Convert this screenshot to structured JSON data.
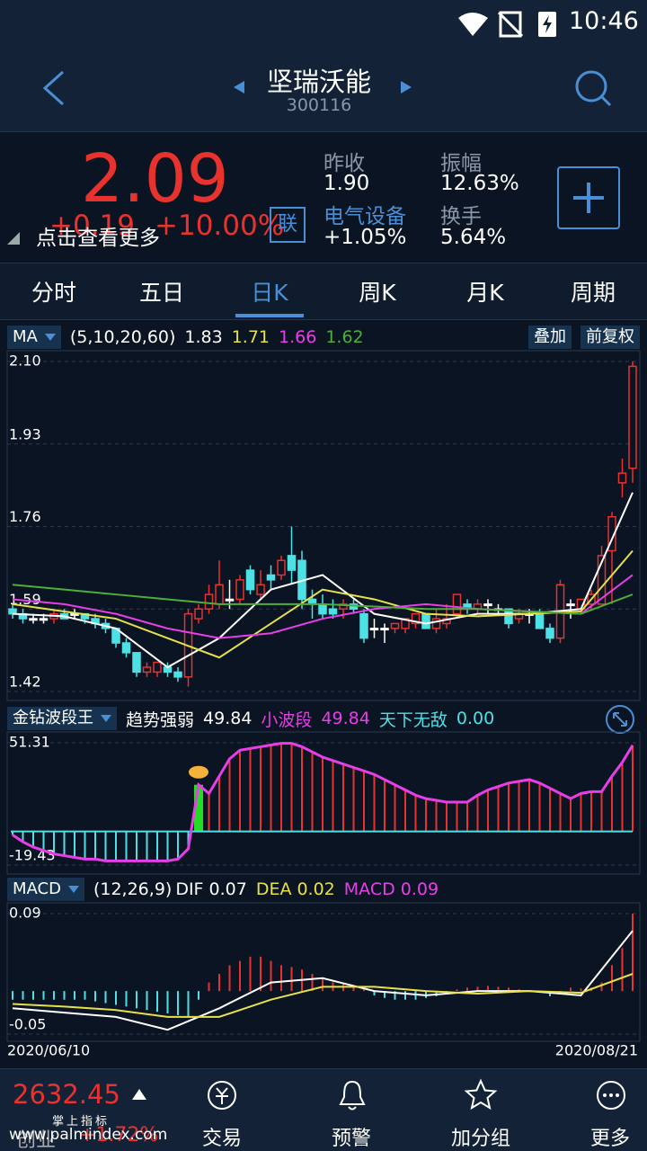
{
  "status": {
    "time": "10:46"
  },
  "header": {
    "title": "坚瑞沃能",
    "code": "300116"
  },
  "quote": {
    "price": "2.09",
    "change": "+0.19",
    "change_pct": "+10.00%",
    "link": "联",
    "hint": "点击查看更多",
    "stats": [
      {
        "label": "昨收",
        "value": "1.90"
      },
      {
        "label": "振幅",
        "value": "12.63%"
      },
      {
        "label": "电气设备",
        "value": "+1.05%"
      },
      {
        "label": "换手",
        "value": "5.64%"
      }
    ]
  },
  "tabs": [
    "分时",
    "五日",
    "日K",
    "周K",
    "月K",
    "周期"
  ],
  "chart_data": [
    {
      "type": "candlestick",
      "indicator": "MA",
      "params": "(5,10,20,60)",
      "buttons": [
        "叠加",
        "前复权"
      ],
      "up_color": "#e8322e",
      "down_color": "#4de1e6",
      "flat_color": "#ffffff",
      "ylim": [
        1.42,
        2.1
      ],
      "yticks": [
        {
          "value": 2.1,
          "label": "2.10"
        },
        1.93,
        1.76,
        1.59,
        1.42
      ],
      "candles": [
        [
          1.59,
          1.6,
          1.57,
          1.58
        ],
        [
          1.58,
          1.59,
          1.56,
          1.57
        ],
        [
          1.57,
          1.58,
          1.56,
          1.57
        ],
        [
          1.57,
          1.58,
          1.56,
          1.57
        ],
        [
          1.57,
          1.59,
          1.56,
          1.58
        ],
        [
          1.58,
          1.59,
          1.57,
          1.57
        ],
        [
          1.58,
          1.59,
          1.57,
          1.58
        ],
        [
          1.58,
          1.58,
          1.56,
          1.57
        ],
        [
          1.57,
          1.58,
          1.55,
          1.56
        ],
        [
          1.56,
          1.57,
          1.54,
          1.55
        ],
        [
          1.55,
          1.55,
          1.51,
          1.52
        ],
        [
          1.52,
          1.53,
          1.49,
          1.5
        ],
        [
          1.5,
          1.5,
          1.45,
          1.46
        ],
        [
          1.46,
          1.48,
          1.45,
          1.47
        ],
        [
          1.46,
          1.48,
          1.45,
          1.48
        ],
        [
          1.47,
          1.48,
          1.45,
          1.46
        ],
        [
          1.46,
          1.47,
          1.44,
          1.45
        ],
        [
          1.45,
          1.59,
          1.43,
          1.58
        ],
        [
          1.57,
          1.6,
          1.56,
          1.59
        ],
        [
          1.59,
          1.64,
          1.58,
          1.62
        ],
        [
          1.6,
          1.69,
          1.59,
          1.64
        ],
        [
          1.61,
          1.65,
          1.59,
          1.61
        ],
        [
          1.61,
          1.66,
          1.6,
          1.65
        ],
        [
          1.67,
          1.68,
          1.62,
          1.63
        ],
        [
          1.62,
          1.67,
          1.61,
          1.64
        ],
        [
          1.66,
          1.68,
          1.63,
          1.65
        ],
        [
          1.66,
          1.7,
          1.65,
          1.69
        ],
        [
          1.7,
          1.76,
          1.64,
          1.67
        ],
        [
          1.69,
          1.71,
          1.59,
          1.61
        ],
        [
          1.61,
          1.63,
          1.57,
          1.6
        ],
        [
          1.6,
          1.62,
          1.57,
          1.58
        ],
        [
          1.59,
          1.61,
          1.57,
          1.58
        ],
        [
          1.59,
          1.61,
          1.57,
          1.6
        ],
        [
          1.6,
          1.61,
          1.58,
          1.59
        ],
        [
          1.58,
          1.59,
          1.52,
          1.53
        ],
        [
          1.55,
          1.57,
          1.53,
          1.55
        ],
        [
          1.55,
          1.56,
          1.52,
          1.55
        ],
        [
          1.55,
          1.56,
          1.54,
          1.56
        ],
        [
          1.55,
          1.57,
          1.54,
          1.57
        ],
        [
          1.56,
          1.58,
          1.55,
          1.58
        ],
        [
          1.58,
          1.58,
          1.55,
          1.55
        ],
        [
          1.55,
          1.59,
          1.54,
          1.57
        ],
        [
          1.56,
          1.6,
          1.55,
          1.57
        ],
        [
          1.58,
          1.62,
          1.57,
          1.62
        ],
        [
          1.6,
          1.61,
          1.58,
          1.59
        ],
        [
          1.59,
          1.61,
          1.58,
          1.6
        ],
        [
          1.6,
          1.61,
          1.58,
          1.6
        ],
        [
          1.59,
          1.6,
          1.58,
          1.59
        ],
        [
          1.59,
          1.59,
          1.55,
          1.56
        ],
        [
          1.57,
          1.59,
          1.56,
          1.58
        ],
        [
          1.58,
          1.59,
          1.56,
          1.58
        ],
        [
          1.58,
          1.59,
          1.55,
          1.55
        ],
        [
          1.55,
          1.56,
          1.52,
          1.53
        ],
        [
          1.53,
          1.65,
          1.52,
          1.64
        ],
        [
          1.6,
          1.61,
          1.57,
          1.6
        ],
        [
          1.59,
          1.61,
          1.58,
          1.61
        ],
        [
          1.6,
          1.63,
          1.59,
          1.62
        ],
        [
          1.6,
          1.72,
          1.6,
          1.7
        ],
        [
          1.71,
          1.79,
          1.6,
          1.78
        ],
        [
          1.85,
          1.9,
          1.82,
          1.87
        ],
        [
          1.88,
          2.1,
          1.85,
          2.09
        ]
      ],
      "series": [
        {
          "color": "#ffffff",
          "value_label": "1.83",
          "x": [
            0,
            5,
            10,
            15,
            20,
            25,
            30,
            35,
            40,
            45,
            50,
            55,
            60
          ],
          "values": [
            1.58,
            1.575,
            1.55,
            1.47,
            1.53,
            1.63,
            1.66,
            1.58,
            1.56,
            1.58,
            1.58,
            1.59,
            1.83
          ]
        },
        {
          "color": "#e6e14a",
          "value_label": "1.71",
          "x": [
            0,
            5,
            10,
            15,
            20,
            25,
            30,
            35,
            40,
            45,
            50,
            55,
            60
          ],
          "values": [
            1.6,
            1.585,
            1.57,
            1.53,
            1.49,
            1.56,
            1.63,
            1.61,
            1.58,
            1.575,
            1.58,
            1.585,
            1.71
          ]
        },
        {
          "color": "#e83ee8",
          "value_label": "1.66",
          "x": [
            0,
            5,
            10,
            15,
            20,
            25,
            30,
            35,
            40,
            45,
            50,
            55,
            60
          ],
          "values": [
            1.61,
            1.6,
            1.58,
            1.55,
            1.53,
            1.54,
            1.57,
            1.59,
            1.6,
            1.59,
            1.585,
            1.58,
            1.66
          ]
        },
        {
          "color": "#4caf3a",
          "value_label": "1.62",
          "x": [
            0,
            5,
            10,
            15,
            20,
            25,
            30,
            35,
            40,
            45,
            50,
            55,
            60
          ],
          "values": [
            1.64,
            1.63,
            1.62,
            1.61,
            1.6,
            1.6,
            1.6,
            1.595,
            1.59,
            1.59,
            1.585,
            1.58,
            1.62
          ]
        }
      ]
    },
    {
      "type": "bar",
      "indicator": "金钻波段王",
      "items": [
        {
          "label": "趋势强弱",
          "value": "49.84",
          "color": "#ffffff"
        },
        {
          "label": "小波段",
          "value": "49.84",
          "color": "#e83ee8"
        },
        {
          "label": "天下无敌",
          "value": "0.00",
          "color": "#4de1e6"
        }
      ],
      "ylim": [
        -19.43,
        51.31
      ],
      "yticks": [
        51.31,
        -19.43
      ],
      "highlight_index": 18,
      "up_color": "#e8322e",
      "down_color": "#4de1e6",
      "highlight_color": "#22dd22",
      "line_color": "#e83ee8",
      "values": [
        -2,
        -6,
        -9,
        -11,
        -13,
        -14,
        -15,
        -16,
        -16,
        -17,
        -17,
        -17,
        -17,
        -17,
        -17,
        -17,
        -16,
        -10,
        27,
        22,
        32,
        42,
        47,
        48,
        49,
        50,
        51,
        51,
        49,
        46,
        43,
        41,
        39,
        37,
        35,
        33,
        30,
        27,
        24,
        21,
        19,
        18,
        17,
        17,
        17,
        21,
        24,
        26,
        28,
        29,
        30,
        28,
        25,
        22,
        19,
        22,
        23,
        23,
        32,
        40,
        49.84
      ]
    },
    {
      "type": "macd",
      "indicator": "MACD",
      "params": "(12,26,9)",
      "ylim": [
        -0.05,
        0.09
      ],
      "yticks": [
        0.09,
        -0.05
      ],
      "x_labels": [
        "2020/06/10",
        "2020/08/21"
      ],
      "up_color": "#e8322e",
      "down_color": "#4de1e6",
      "series": [
        {
          "name": "DIF",
          "color": "#ffffff",
          "value_label": "0.07",
          "x": [
            0,
            5,
            10,
            15,
            20,
            25,
            30,
            35,
            40,
            45,
            50,
            55,
            60
          ],
          "values": [
            -0.02,
            -0.025,
            -0.03,
            -0.045,
            -0.02,
            0.01,
            0.015,
            0.0,
            -0.005,
            0.0,
            0.0,
            -0.005,
            0.07
          ]
        },
        {
          "name": "DEA",
          "color": "#e6e14a",
          "value_label": "0.02",
          "x": [
            0,
            5,
            10,
            15,
            20,
            25,
            30,
            35,
            40,
            45,
            50,
            55,
            60
          ],
          "values": [
            -0.015,
            -0.018,
            -0.022,
            -0.03,
            -0.03,
            -0.01,
            0.005,
            0.005,
            0.0,
            -0.003,
            0.0,
            -0.002,
            0.02
          ]
        },
        {
          "name": "MACD",
          "color": "#e83ee8",
          "value_label": "0.09",
          "values": [
            -0.01,
            -0.01,
            -0.01,
            -0.01,
            -0.01,
            -0.01,
            -0.01,
            -0.01,
            -0.012,
            -0.014,
            -0.016,
            -0.018,
            -0.02,
            -0.022,
            -0.024,
            -0.026,
            -0.028,
            -0.03,
            -0.01,
            0.01,
            0.02,
            0.03,
            0.035,
            0.04,
            0.04,
            0.035,
            0.03,
            0.028,
            0.025,
            0.02,
            0.015,
            0.01,
            0.008,
            0.005,
            0.002,
            -0.005,
            -0.008,
            -0.01,
            -0.01,
            -0.01,
            -0.008,
            -0.006,
            -0.004,
            0.002,
            0.004,
            0.005,
            0.006,
            0.005,
            0.004,
            0.002,
            0.001,
            -0.002,
            -0.006,
            -0.002,
            0.004,
            0.003,
            0.004,
            0.01,
            0.03,
            0.05,
            0.09
          ]
        }
      ]
    }
  ],
  "bottom": {
    "index_value": "2632.45",
    "index_name": "创业",
    "index_change": "+1.72%",
    "watermark": [
      "掌上指标",
      "www.palmindex.com"
    ],
    "nav": [
      "交易",
      "预警",
      "加分组",
      "更多"
    ]
  }
}
